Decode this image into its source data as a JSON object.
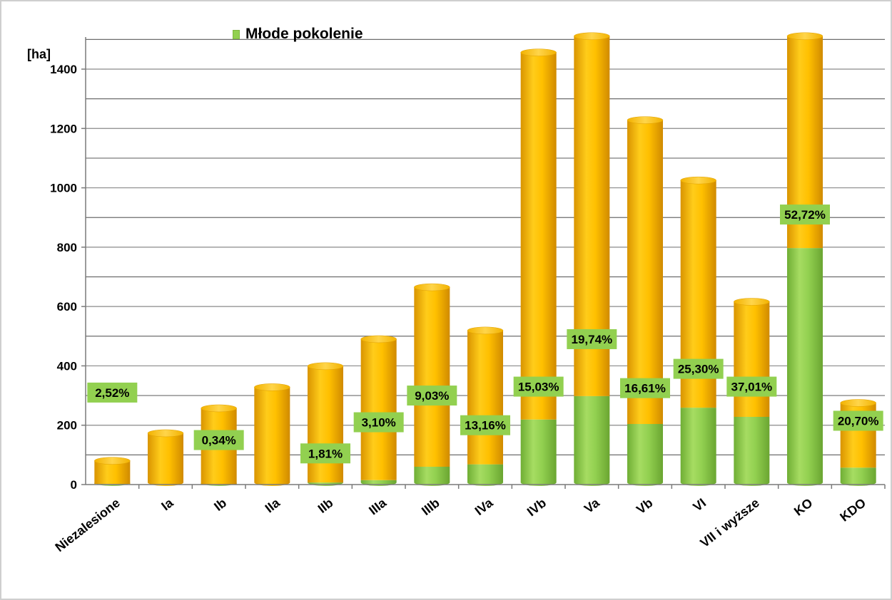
{
  "chart_data": {
    "type": "bar",
    "stacked": true,
    "ylabel": "[ha]",
    "ylim": [
      0,
      1500
    ],
    "yticks": [
      0,
      200,
      400,
      600,
      800,
      1000,
      1200,
      1400
    ],
    "grid": true,
    "legend_position": "top-center",
    "categories": [
      "Niezalesione",
      "Ia",
      "Ib",
      "IIa",
      "IIb",
      "IIIa",
      "IIIb",
      "IVa",
      "IVb",
      "Va",
      "Vb",
      "VI",
      "VII i wyższe",
      "KO",
      "KDO"
    ],
    "series": [
      {
        "name": "Młode  pokolenie",
        "color": "#92d050",
        "values": [
          2,
          0,
          1,
          0,
          7,
          15,
          60,
          68,
          219,
          298,
          204,
          259,
          228,
          797,
          57
        ]
      },
      {
        "name": "",
        "color": "#ffc000",
        "values": [
          78,
          173,
          256,
          328,
          392,
          475,
          605,
          451,
          1237,
          1213,
          1024,
          766,
          388,
          714,
          218
        ]
      }
    ],
    "data_labels": [
      "2,52%",
      "",
      "0,34%",
      "",
      "1,81%",
      "3,10%",
      "9,03%",
      "13,16%",
      "15,03%",
      "19,74%",
      "16,61%",
      "25,30%",
      "37,01%",
      "52,72%",
      "20,70%"
    ],
    "data_label_values": [
      310,
      null,
      150,
      null,
      105,
      210,
      300,
      200,
      330,
      490,
      325,
      390,
      330,
      910,
      215
    ]
  }
}
